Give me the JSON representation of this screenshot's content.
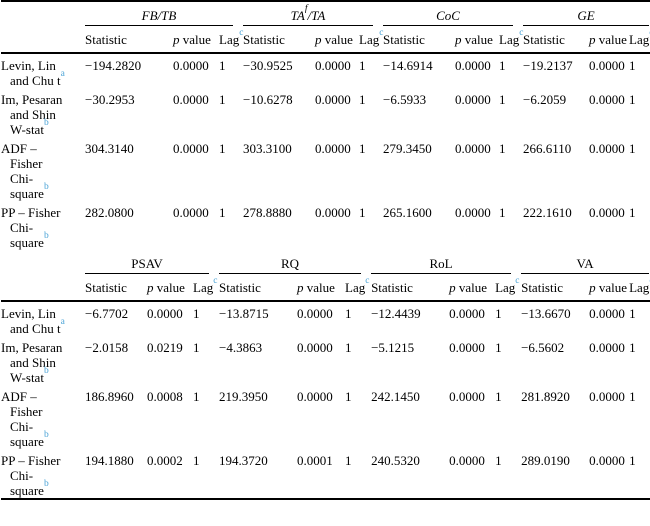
{
  "colors": {
    "footnote_marker": "#4aa3d6"
  },
  "subheaders": [
    {
      "name": "statistic-header",
      "segs": [
        "Statistic"
      ]
    },
    {
      "name": "p-value-header",
      "segs": [
        {
          "it": "p"
        },
        " value"
      ]
    },
    {
      "name": "lag-header",
      "segs": [
        "Lag",
        {
          "sup": "c"
        }
      ]
    }
  ],
  "tables": [
    {
      "name": "top",
      "groups": [
        {
          "segs": [
            "FB/TB"
          ],
          "italic": true
        },
        {
          "segs": [
            "TA",
            {
              "sup": "f",
              "dark": true
            },
            "/TA"
          ],
          "italic": true
        },
        {
          "segs": [
            "CoC"
          ],
          "italic": true
        },
        {
          "segs": [
            "GE"
          ],
          "italic": true
        }
      ],
      "rows": [
        {
          "label_lines": [
            [
              "Levin, Lin"
            ],
            [
              "and Chu t",
              {
                "sup": "a"
              }
            ]
          ],
          "cells": [
            [
              "−194.2820",
              "0.0000",
              "1"
            ],
            [
              "−30.9525",
              "0.0000",
              "1"
            ],
            [
              "−14.6914",
              "0.0000",
              "1"
            ],
            [
              "−19.2137",
              "0.0000",
              "1"
            ]
          ]
        },
        {
          "label_lines": [
            [
              "Im, Pesaran"
            ],
            [
              "and Shin"
            ],
            [
              "W-stat",
              {
                "sup": "b"
              }
            ]
          ],
          "cells": [
            [
              "−30.2953",
              "0.0000",
              "1"
            ],
            [
              "−10.6278",
              "0.0000",
              "1"
            ],
            [
              "−6.5933",
              "0.0000",
              "1"
            ],
            [
              "−6.2059",
              "0.0000",
              "1"
            ]
          ]
        },
        {
          "label_lines": [
            [
              "ADF –"
            ],
            [
              "Fisher"
            ],
            [
              "Chi-"
            ],
            [
              "square",
              {
                "sup": "b"
              }
            ]
          ],
          "cells": [
            [
              "304.3140",
              "0.0000",
              "1"
            ],
            [
              "303.3100",
              "0.0000",
              "1"
            ],
            [
              "279.3450",
              "0.0000",
              "1"
            ],
            [
              "266.6110",
              "0.0000",
              "1"
            ]
          ]
        },
        {
          "label_lines": [
            [
              "PP – Fisher"
            ],
            [
              "Chi-"
            ],
            [
              "square",
              {
                "sup": "b"
              }
            ]
          ],
          "cells": [
            [
              "282.0800",
              "0.0000",
              "1"
            ],
            [
              "278.8880",
              "0.0000",
              "1"
            ],
            [
              "265.1600",
              "0.0000",
              "1"
            ],
            [
              "222.1610",
              "0.0000",
              "1"
            ]
          ]
        }
      ]
    },
    {
      "name": "bottom",
      "groups": [
        {
          "segs": [
            "PSAV"
          ],
          "italic": false
        },
        {
          "segs": [
            "RQ"
          ],
          "italic": false
        },
        {
          "segs": [
            "RoL"
          ],
          "italic": false
        },
        {
          "segs": [
            "VA"
          ],
          "italic": false
        }
      ],
      "rows": [
        {
          "label_lines": [
            [
              "Levin, Lin"
            ],
            [
              "and Chu t",
              {
                "sup": "a"
              }
            ]
          ],
          "cells": [
            [
              "−6.7702",
              "0.0000",
              "1"
            ],
            [
              "−13.8715",
              "0.0000",
              "1"
            ],
            [
              "−12.4439",
              "0.0000",
              "1"
            ],
            [
              "−13.6670",
              "0.0000",
              "1"
            ]
          ]
        },
        {
          "label_lines": [
            [
              "Im, Pesaran"
            ],
            [
              "and Shin"
            ],
            [
              "W-stat",
              {
                "sup": "b"
              }
            ]
          ],
          "cells": [
            [
              "−2.0158",
              "0.0219",
              "1"
            ],
            [
              "−4.3863",
              "0.0000",
              "1"
            ],
            [
              "−5.1215",
              "0.0000",
              "1"
            ],
            [
              "−6.5602",
              "0.0000",
              "1"
            ]
          ]
        },
        {
          "label_lines": [
            [
              "ADF –"
            ],
            [
              "Fisher"
            ],
            [
              "Chi-"
            ],
            [
              "square",
              {
                "sup": "b"
              }
            ]
          ],
          "cells": [
            [
              "186.8960",
              "0.0008",
              "1"
            ],
            [
              "219.3950",
              "0.0000",
              "1"
            ],
            [
              "242.1450",
              "0.0000",
              "1"
            ],
            [
              "281.8920",
              "0.0000",
              "1"
            ]
          ]
        },
        {
          "label_lines": [
            [
              "PP – Fisher"
            ],
            [
              "Chi-"
            ],
            [
              "square",
              {
                "sup": "b"
              }
            ]
          ],
          "cells": [
            [
              "194.1880",
              "0.0002",
              "1"
            ],
            [
              "194.3720",
              "0.0001",
              "1"
            ],
            [
              "240.5320",
              "0.0000",
              "1"
            ],
            [
              "289.0190",
              "0.0000",
              "1"
            ]
          ]
        }
      ]
    }
  ]
}
